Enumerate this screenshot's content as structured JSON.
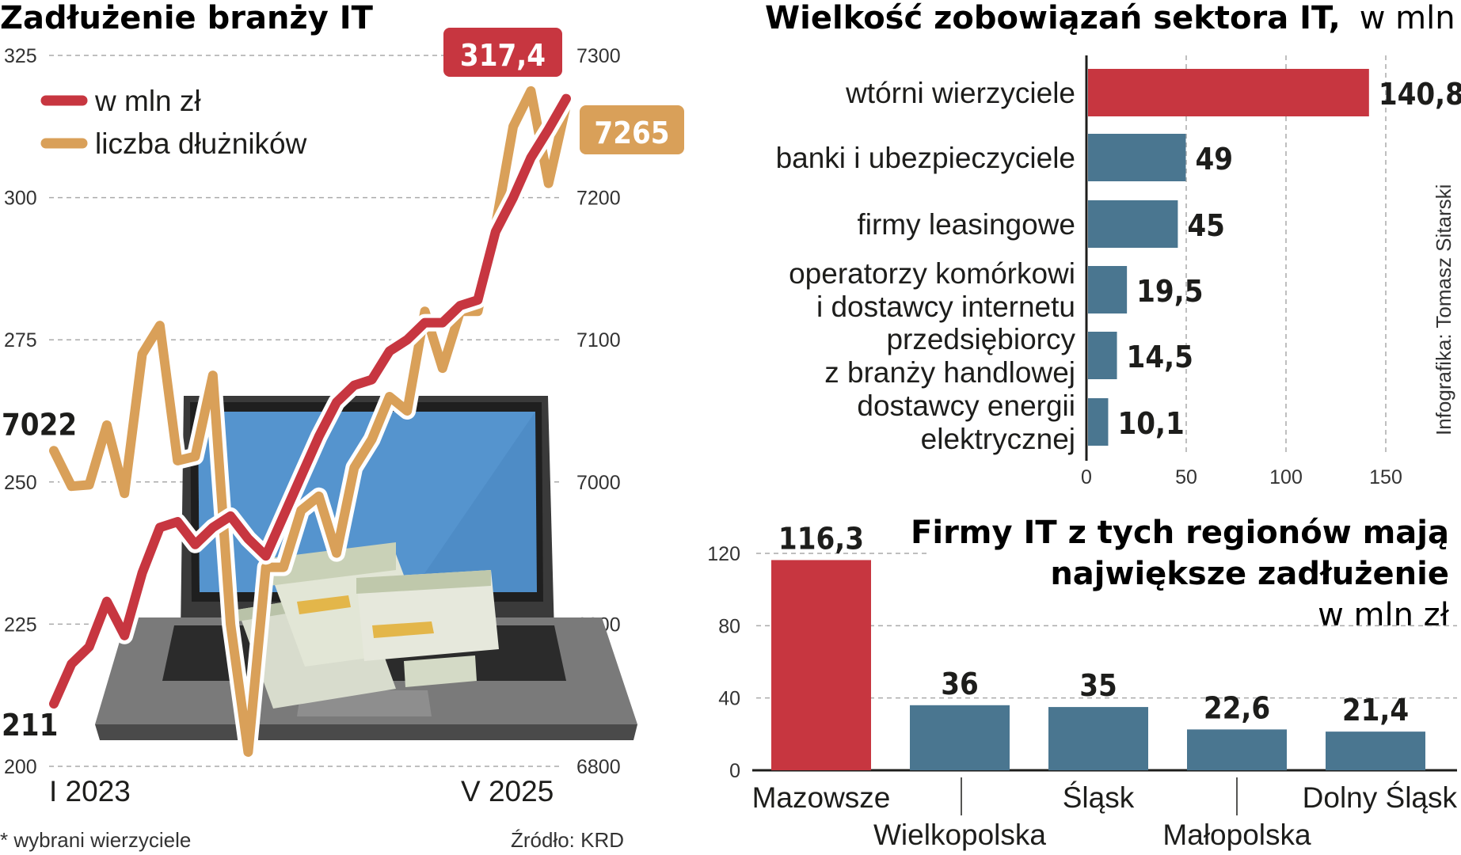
{
  "colors": {
    "red": "#c73640",
    "orange": "#d9a059",
    "blue": "#4a7690",
    "grid": "#aaaaaa",
    "text": "#1d1d1b"
  },
  "chart_data": [
    {
      "type": "line",
      "title": "Zadłużenie branży IT",
      "x_labels": [
        "I 2023",
        "V 2025"
      ],
      "left_axis": {
        "ticks": [
          "325",
          "300",
          "275",
          "250",
          "225",
          "200"
        ],
        "ylim": [
          200,
          325
        ]
      },
      "right_axis": {
        "ticks": [
          "7300",
          "7200",
          "7100",
          "7000",
          "6900",
          "6800"
        ],
        "ylim": [
          6800,
          7300
        ]
      },
      "grid": true,
      "legend_position": "top-left",
      "series": [
        {
          "name": "w mln zł",
          "color": "#c73640",
          "axis": "left",
          "start_label": "211",
          "end_label": "317,4",
          "values": [
            211,
            218,
            221,
            229,
            223,
            234,
            242,
            243,
            239,
            242,
            244,
            240,
            237,
            244,
            251,
            258,
            264,
            267,
            268,
            273,
            275,
            278,
            278,
            281,
            282,
            294,
            300,
            307,
            312,
            317.4
          ]
        },
        {
          "name": "liczba dłużników",
          "color": "#d9a059",
          "axis": "right",
          "start_label": "7022",
          "end_label": "7265",
          "values": [
            7022,
            6997,
            6998,
            7040,
            6992,
            7090,
            7110,
            7015,
            7018,
            7075,
            6900,
            6810,
            6940,
            6940,
            6980,
            6990,
            6950,
            7010,
            7030,
            7060,
            7050,
            7120,
            7080,
            7120,
            7120,
            7180,
            7250,
            7275,
            7210,
            7265
          ]
        }
      ]
    },
    {
      "type": "bar",
      "orientation": "horizontal",
      "title": "Wielkość zobowiązań sektora IT,",
      "title_unit": "w mln zł*",
      "categories": [
        [
          "wtórni wierzyciele"
        ],
        [
          "banki i ubezpieczyciele"
        ],
        [
          "firmy leasingowe"
        ],
        [
          "operatorzy komórkowi",
          "i dostawcy internetu"
        ],
        [
          "przedsiębiorcy",
          "z branży handlowej"
        ],
        [
          "dostawcy energii",
          "elektrycznej"
        ]
      ],
      "values": [
        140.8,
        49,
        45,
        19.5,
        14.5,
        10.1
      ],
      "value_labels": [
        "140,8",
        "49",
        "45",
        "19,5",
        "14,5",
        "10,1"
      ],
      "xlim": [
        0,
        150
      ],
      "x_ticks": [
        "0",
        "50",
        "100",
        "150"
      ],
      "grid": true
    },
    {
      "type": "bar",
      "title_lines": [
        "Firmy IT z tych regionów mają",
        "największe zadłużenie"
      ],
      "title_unit": "w mln zł",
      "categories": [
        "Mazowsze",
        "Wielkopolska",
        "Śląsk",
        "Małopolska",
        "Dolny Śląsk"
      ],
      "values": [
        116.3,
        36,
        35,
        22.6,
        21.4
      ],
      "value_labels": [
        "116,3",
        "36",
        "35",
        "22,6",
        "21,4"
      ],
      "ylim": [
        0,
        120
      ],
      "y_ticks": [
        "120",
        "80",
        "40",
        "0"
      ],
      "grid": true
    }
  ],
  "footnote": "* wybrani wierzyciele",
  "source": "Źródło: KRD",
  "credit": "Infografika: Tomasz Sitarski"
}
